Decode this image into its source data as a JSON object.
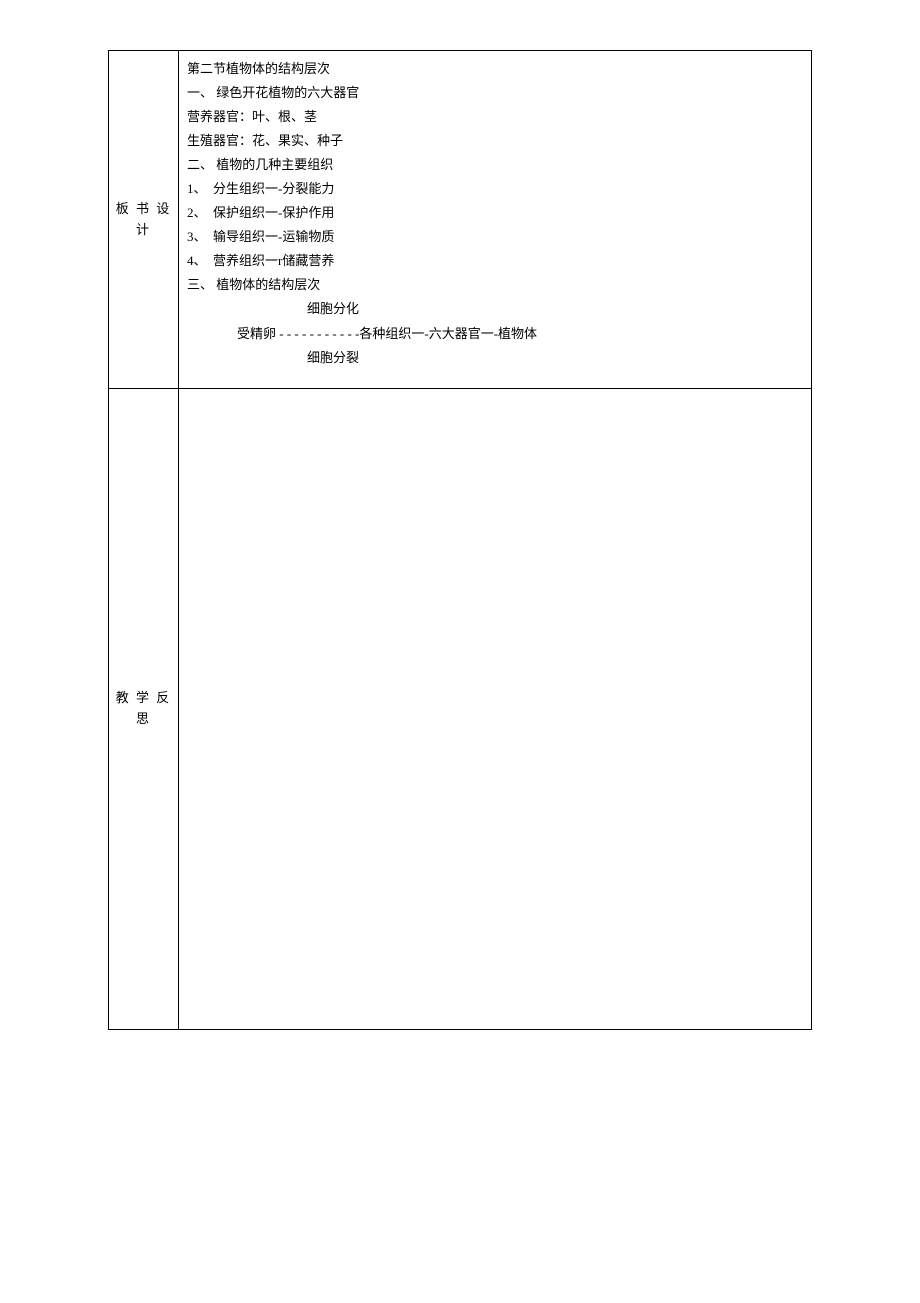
{
  "table": {
    "border_color": "#000000",
    "background_color": "#ffffff",
    "font_size": 13,
    "font_family": "SimSun",
    "rows": [
      {
        "label": "板 书 设\n计",
        "content": {
          "line1": "第二节植物体的结构层次",
          "line2": "一、 绿色开花植物的六大器官",
          "line3": "营养器官：叶、根、茎",
          "line4": "生殖器官：花、果实、种子",
          "line5": "二、 植物的几种主要组织",
          "line6": "1、  分生组织一-分裂能力",
          "line7": "2、  保护组织一-保护作用",
          "line8": "3、  输导组织一-运输物质",
          "line9": "4、  营养组织一r储藏营养",
          "line10": "三、 植物体的结构层次",
          "line11": "细胞分化",
          "line12": "受精卵 - - - - - - - - - - -各种组织一-六大器官一-植物体",
          "line13": "细胞分裂"
        }
      },
      {
        "label": "教\n学 反 思",
        "content": {}
      }
    ]
  }
}
